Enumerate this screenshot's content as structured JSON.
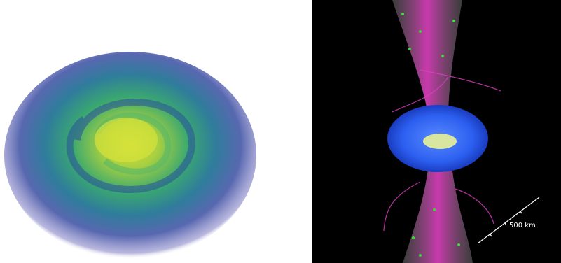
{
  "right_panel": {
    "scale_label": "500 km"
  }
}
